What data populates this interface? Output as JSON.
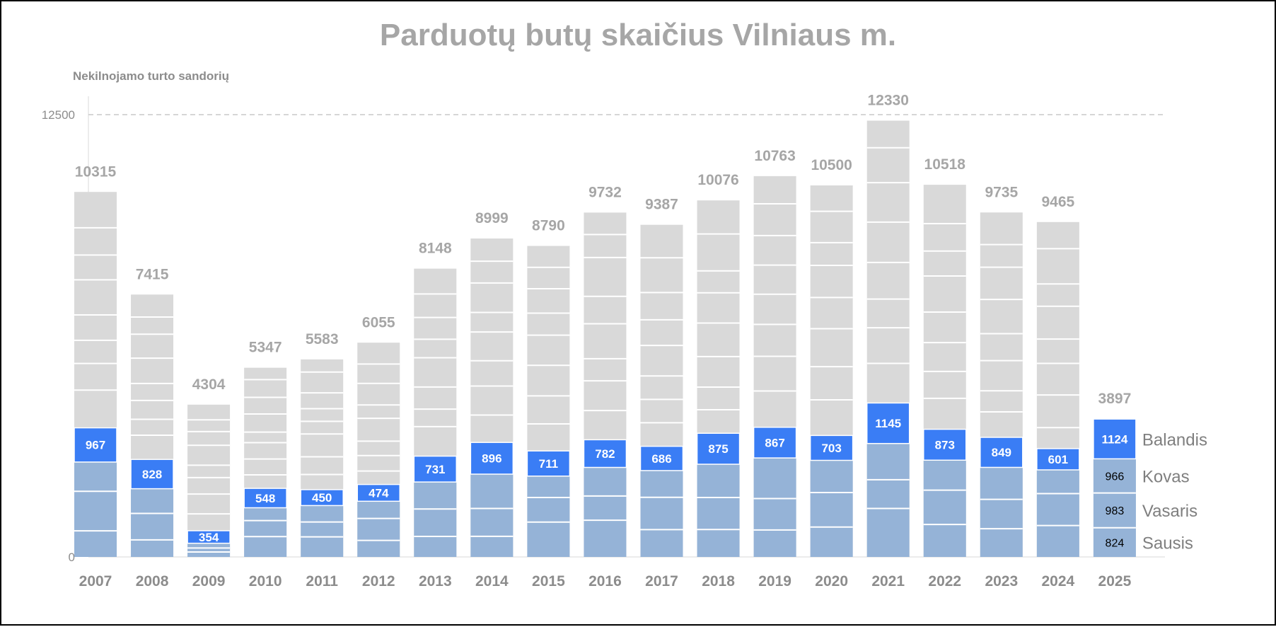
{
  "chart_data": {
    "type": "bar",
    "title": "Parduotų butų skaičius Vilniaus m.",
    "ylabel": "Nekilnojamo turto sandorių",
    "ylim": [
      0,
      12500
    ],
    "yticks": [
      0,
      12500
    ],
    "gridline": 12500,
    "grid": "dashed line at 12500",
    "colors": {
      "total": "#d9d9d9",
      "balandis": "#3a7df5",
      "q1": "#95b3d7",
      "text_gray": "#a6a6a6"
    },
    "categories": [
      "2007",
      "2008",
      "2009",
      "2010",
      "2011",
      "2012",
      "2013",
      "2014",
      "2015",
      "2016",
      "2017",
      "2018",
      "2019",
      "2020",
      "2021",
      "2022",
      "2023",
      "2024",
      "2025"
    ],
    "totals": [
      10315,
      7415,
      4304,
      5347,
      5583,
      6055,
      8148,
      8999,
      8790,
      9732,
      9387,
      10076,
      10763,
      10500,
      12330,
      10518,
      9735,
      9465,
      3897
    ],
    "balandis": [
      967,
      828,
      354,
      548,
      450,
      474,
      731,
      896,
      711,
      782,
      686,
      875,
      867,
      703,
      1145,
      873,
      849,
      601,
      1124
    ],
    "jan_mar_2025": {
      "Sausis": 824,
      "Vasaris": 983,
      "Kovas": 966
    },
    "legend": [
      "Balandis",
      "Kovas",
      "Vasaris",
      "Sausis"
    ]
  }
}
